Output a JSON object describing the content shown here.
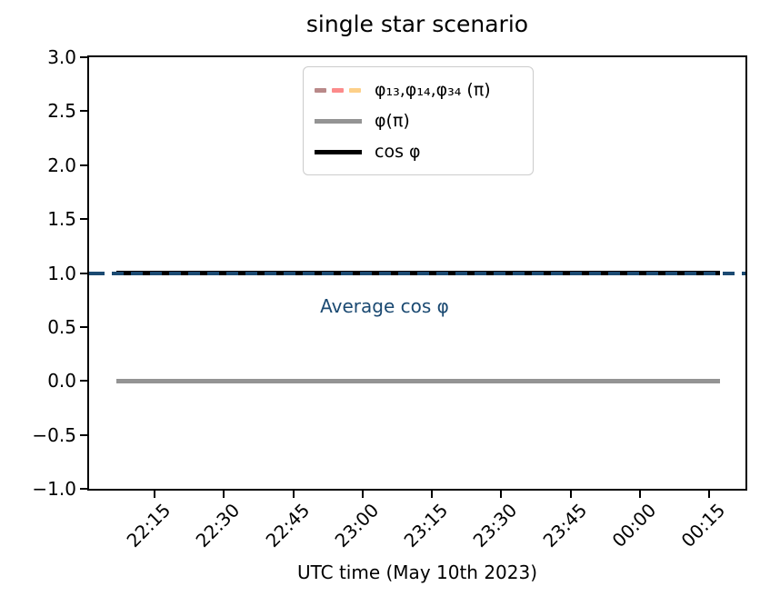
{
  "chart_data": {
    "type": "line",
    "title": "single star scenario",
    "xlabel": "UTC time (May 10th 2023)",
    "ylabel": "",
    "ylim": [
      -1.0,
      3.0
    ],
    "grid": false,
    "x_tick_labels": [
      "22:15",
      "22:30",
      "22:45",
      "23:00",
      "23:15",
      "23:30",
      "23:45",
      "00:00",
      "00:15"
    ],
    "y_tick_labels": [
      "3.0",
      "2.5",
      "2.0",
      "1.5",
      "1.0",
      "0.5",
      "0.0",
      "−0.5",
      "−1.0"
    ],
    "y_tick_values": [
      3.0,
      2.5,
      2.0,
      1.5,
      1.0,
      0.5,
      0.0,
      -0.5,
      -1.0
    ],
    "series": [
      {
        "name": "φ₁₃,φ₁₄,φ₃₄ (π)",
        "style": "dashed",
        "dash_colors": [
          "#b98989",
          "#fc8b8b",
          "#fdd089"
        ],
        "visible_in_plot": false
      },
      {
        "name": "φ(π)",
        "style": "solid",
        "color": "#949494",
        "value": 0.0,
        "linewidth": 5,
        "extent": "data"
      },
      {
        "name": "cos φ",
        "style": "solid",
        "color": "#000000",
        "value": 1.0,
        "linewidth": 5,
        "extent": "data"
      },
      {
        "name": "Average cos φ",
        "style": "dashed",
        "color": "#1b4a72",
        "value": 1.0,
        "linewidth": 4,
        "extent": "axes"
      }
    ],
    "legend": {
      "position": "upper center",
      "entries": [
        {
          "label": "φ₁₃,φ₁₄,φ₃₄ (π)"
        },
        {
          "label": "φ(π)"
        },
        {
          "label": "cos φ"
        }
      ]
    },
    "annotations": [
      {
        "text": "Average cos φ",
        "color": "#1b4a72",
        "y_value": 1.0
      }
    ]
  }
}
